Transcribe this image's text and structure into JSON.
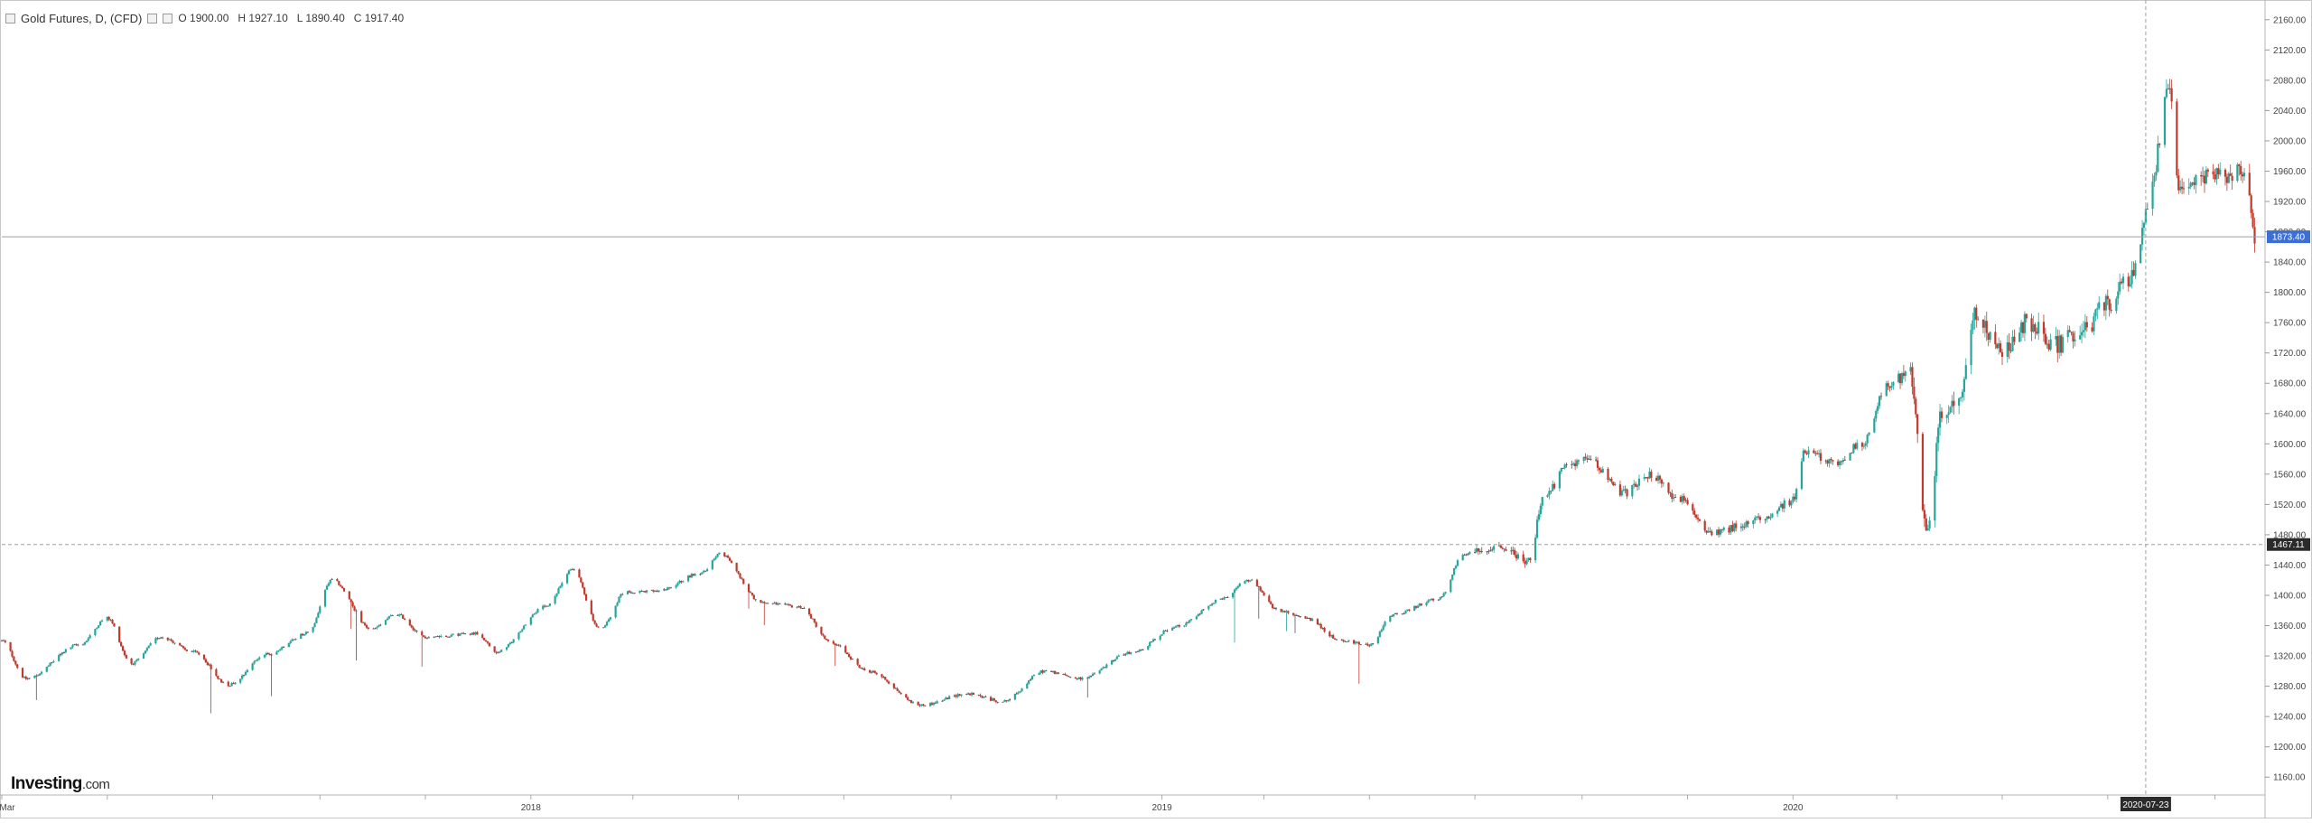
{
  "legend": {
    "symbol": "Gold Futures, D, (CFD)",
    "open": "O 1900.00",
    "high": "H 1927.10",
    "low": "L 1890.40",
    "close": "C 1917.40"
  },
  "logo": {
    "brand": "Investing",
    "suffix": ".com"
  },
  "colors": {
    "up": "#26a69a",
    "down": "#c0392b",
    "flat": "#555555",
    "last_price_badge": "#3b6fd4",
    "crosshair_badge": "#2b2b2b"
  },
  "chart_data": {
    "type": "candlestick",
    "title": "Gold Futures, D, (CFD)",
    "y_axis": {
      "position": "right",
      "range": [
        1140,
        2180
      ],
      "ticks": [
        "2160.00",
        "2120.00",
        "2080.00",
        "2040.00",
        "2000.00",
        "1960.00",
        "1920.00",
        "1880.00",
        "1840.00",
        "1800.00",
        "1760.00",
        "1720.00",
        "1680.00",
        "1640.00",
        "1600.00",
        "1560.00",
        "1520.00",
        "1480.00",
        "1440.00",
        "1400.00",
        "1360.00",
        "1320.00",
        "1280.00",
        "1240.00",
        "1200.00",
        "1160.00"
      ]
    },
    "x_axis": {
      "labels": [
        "Mar",
        "2018",
        "2019",
        "2020"
      ],
      "range": [
        "2017-03-01",
        "2020-09-30"
      ]
    },
    "last_price": {
      "value": 1873.4,
      "label": "1873.40"
    },
    "crosshair": {
      "date": "2020-07-23",
      "value": 1467.11,
      "price_label": "1467.11"
    },
    "series": [
      {
        "points": [
          [
            "2017-03-01",
            1340
          ],
          [
            "2017-03-15",
            1290
          ],
          [
            "2017-04-15",
            1335
          ],
          [
            "2017-05-01",
            1370
          ],
          [
            "2017-05-15",
            1310
          ],
          [
            "2017-06-01",
            1345
          ],
          [
            "2017-06-20",
            1325
          ],
          [
            "2017-07-10",
            1282
          ],
          [
            "2017-08-01",
            1322
          ],
          [
            "2017-08-25",
            1350
          ],
          [
            "2017-09-08",
            1420
          ],
          [
            "2017-10-01",
            1355
          ],
          [
            "2017-10-15",
            1375
          ],
          [
            "2017-11-01",
            1345
          ],
          [
            "2017-12-01",
            1350
          ],
          [
            "2017-12-12",
            1325
          ],
          [
            "2018-01-10",
            1385
          ],
          [
            "2018-01-25",
            1435
          ],
          [
            "2018-02-10",
            1355
          ],
          [
            "2018-02-25",
            1405
          ],
          [
            "2018-03-15",
            1405
          ],
          [
            "2018-04-10",
            1430
          ],
          [
            "2018-04-20",
            1455
          ],
          [
            "2018-05-15",
            1390
          ],
          [
            "2018-06-05",
            1385
          ],
          [
            "2018-06-25",
            1335
          ],
          [
            "2018-07-15",
            1300
          ],
          [
            "2018-08-15",
            1255
          ],
          [
            "2018-09-10",
            1270
          ],
          [
            "2018-10-01",
            1260
          ],
          [
            "2018-10-25",
            1300
          ],
          [
            "2018-11-15",
            1290
          ],
          [
            "2018-12-15",
            1325
          ],
          [
            "2019-01-10",
            1360
          ],
          [
            "2019-02-05",
            1395
          ],
          [
            "2019-02-20",
            1420
          ],
          [
            "2019-03-10",
            1380
          ],
          [
            "2019-03-25",
            1370
          ],
          [
            "2019-04-15",
            1340
          ],
          [
            "2019-05-01",
            1335
          ],
          [
            "2019-05-15",
            1375
          ],
          [
            "2019-06-10",
            1395
          ],
          [
            "2019-06-25",
            1455
          ],
          [
            "2019-07-15",
            1465
          ],
          [
            "2019-08-01",
            1445
          ],
          [
            "2019-08-10",
            1530
          ],
          [
            "2019-08-25",
            1575
          ],
          [
            "2019-09-05",
            1580
          ],
          [
            "2019-09-25",
            1535
          ],
          [
            "2019-10-10",
            1560
          ],
          [
            "2019-10-25",
            1530
          ],
          [
            "2019-11-15",
            1485
          ],
          [
            "2019-12-01",
            1490
          ],
          [
            "2019-12-15",
            1505
          ],
          [
            "2020-01-01",
            1525
          ],
          [
            "2020-01-08",
            1590
          ],
          [
            "2020-01-25",
            1575
          ],
          [
            "2020-02-10",
            1600
          ],
          [
            "2020-02-24",
            1675
          ],
          [
            "2020-03-09",
            1690
          ],
          [
            "2020-03-19",
            1480
          ],
          [
            "2020-03-27",
            1640
          ],
          [
            "2020-04-08",
            1670
          ],
          [
            "2020-04-14",
            1770
          ],
          [
            "2020-05-01",
            1720
          ],
          [
            "2020-05-15",
            1760
          ],
          [
            "2020-06-01",
            1730
          ],
          [
            "2020-06-15",
            1745
          ],
          [
            "2020-07-01",
            1785
          ],
          [
            "2020-07-15",
            1820
          ],
          [
            "2020-07-23",
            1900
          ],
          [
            "2020-08-06",
            2070
          ],
          [
            "2020-08-12",
            1930
          ],
          [
            "2020-08-25",
            1950
          ],
          [
            "2020-09-10",
            1955
          ],
          [
            "2020-09-18",
            1960
          ],
          [
            "2020-09-24",
            1873
          ]
        ]
      }
    ]
  }
}
